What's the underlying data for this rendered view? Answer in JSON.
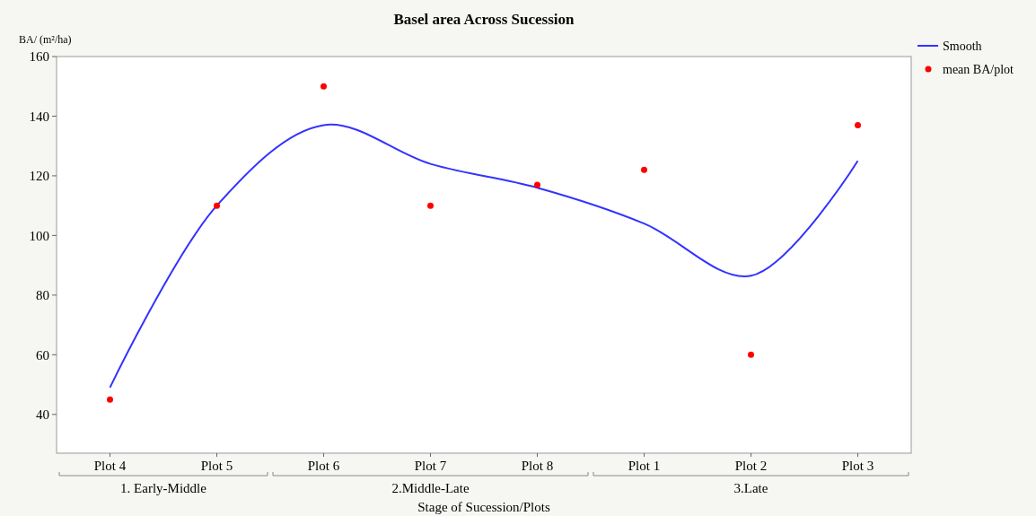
{
  "chart_data": {
    "type": "line",
    "title": "Basel area Across Sucession",
    "ylabel": "BA/ (m²/ha)",
    "xlabel": "Stage of Sucession/Plots",
    "categories": [
      "Plot 4",
      "Plot 5",
      "Plot 6",
      "Plot 7",
      "Plot 8",
      "Plot 1",
      "Plot 2",
      "Plot 3"
    ],
    "series": [
      {
        "name": "Smooth",
        "color": "#3333ff",
        "values": [
          49,
          110,
          137,
          124,
          116,
          104,
          86.5,
          125
        ]
      },
      {
        "name": "mean BA/plot",
        "type": "scatter",
        "marker": "circle",
        "color": "#ff0000",
        "values": [
          45,
          110,
          150,
          110,
          117,
          122,
          60,
          137
        ]
      }
    ],
    "annotations": [
      "1. Early-Middle",
      "2.Middle-Late",
      "3.Late"
    ],
    "ylim": [
      27,
      160
    ],
    "yticks": [
      40,
      60,
      80,
      100,
      120,
      140,
      160
    ],
    "grid": false,
    "legend": "top right"
  }
}
